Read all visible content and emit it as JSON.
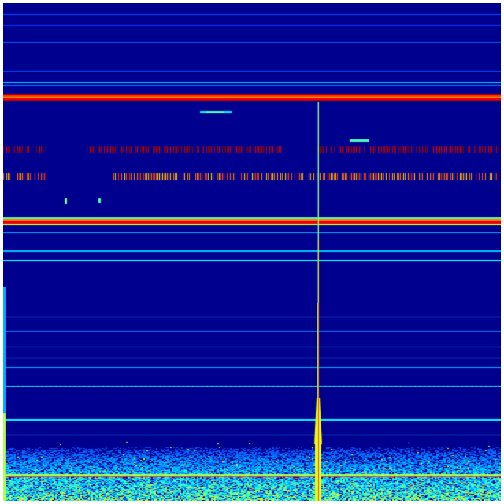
{
  "view": {
    "type": "spectrogram",
    "colormap": "jet",
    "colors": {
      "background": "#00008f",
      "low": "#0000ff",
      "mid": "#00ffff",
      "high": "#ffff00",
      "peak": "#ff0000",
      "max": "#800000"
    }
  }
}
